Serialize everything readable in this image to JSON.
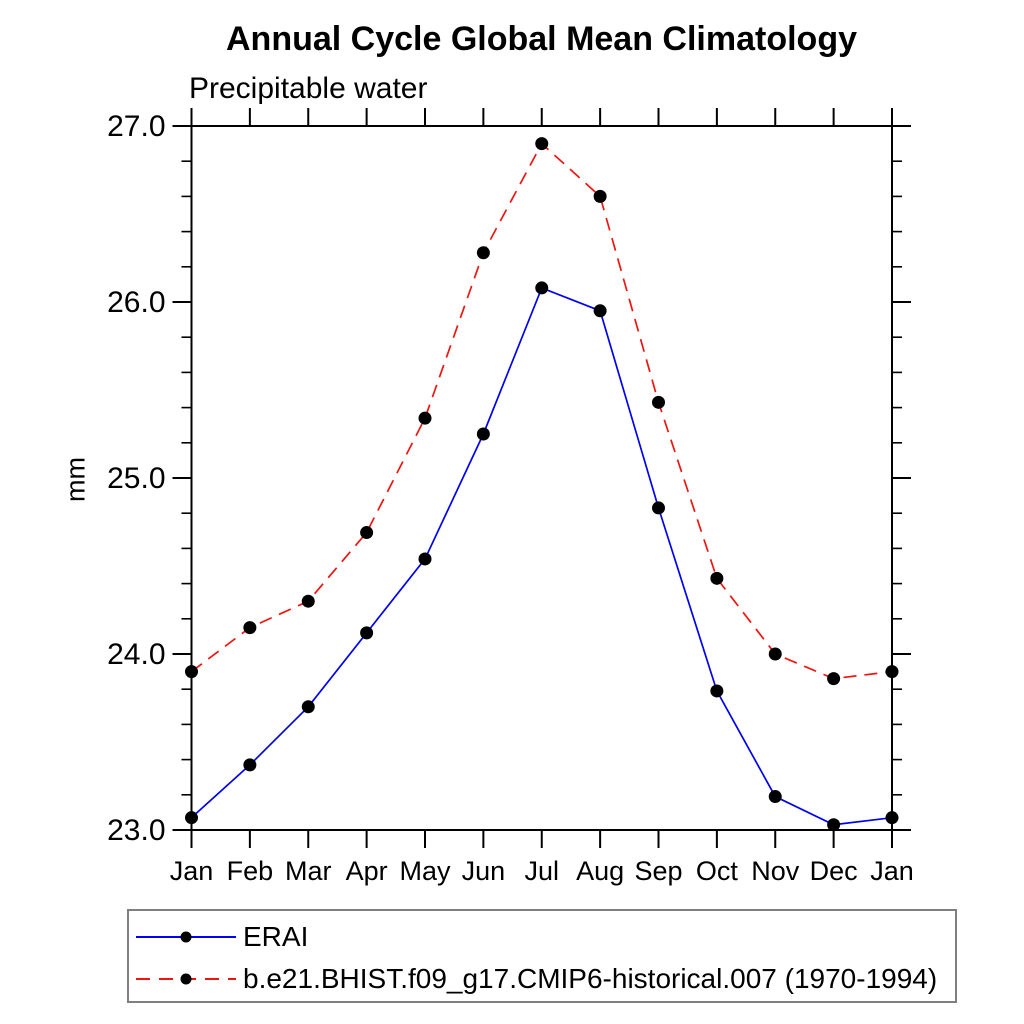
{
  "page": {
    "background": "#ffffff"
  },
  "chart_data": {
    "type": "line",
    "title": "Annual Cycle Global Mean Climatology",
    "subtitle": "Precipitable water",
    "xlabel": "",
    "ylabel": "mm",
    "categories": [
      "Jan",
      "Feb",
      "Mar",
      "Apr",
      "May",
      "Jun",
      "Jul",
      "Aug",
      "Sep",
      "Oct",
      "Nov",
      "Dec",
      "Jan"
    ],
    "ylim": [
      23.0,
      27.0
    ],
    "ytick_major_step": 1.0,
    "ytick_minor_step": 0.2,
    "ytick_labels": [
      "23.0",
      "24.0",
      "25.0",
      "26.0",
      "27.0"
    ],
    "grid": false,
    "legend_position": "bottom-left",
    "axis_color": "#000000",
    "marker_color": "#000000",
    "marker_shape": "filled-circle",
    "series": [
      {
        "name": "ERAI",
        "color": "#0000f0",
        "line_style": "solid",
        "values": [
          23.07,
          23.37,
          23.7,
          24.12,
          24.54,
          25.25,
          26.08,
          25.95,
          24.83,
          23.79,
          23.19,
          23.03,
          23.07
        ]
      },
      {
        "name": "b.e21.BHIST.f09_g17.CMIP6-historical.007 (1970-1994)",
        "color": "#f01410",
        "line_style": "dashed",
        "values": [
          23.9,
          24.15,
          24.3,
          24.69,
          25.34,
          26.28,
          26.9,
          26.6,
          25.43,
          24.43,
          24.0,
          23.86,
          23.9
        ]
      }
    ]
  }
}
